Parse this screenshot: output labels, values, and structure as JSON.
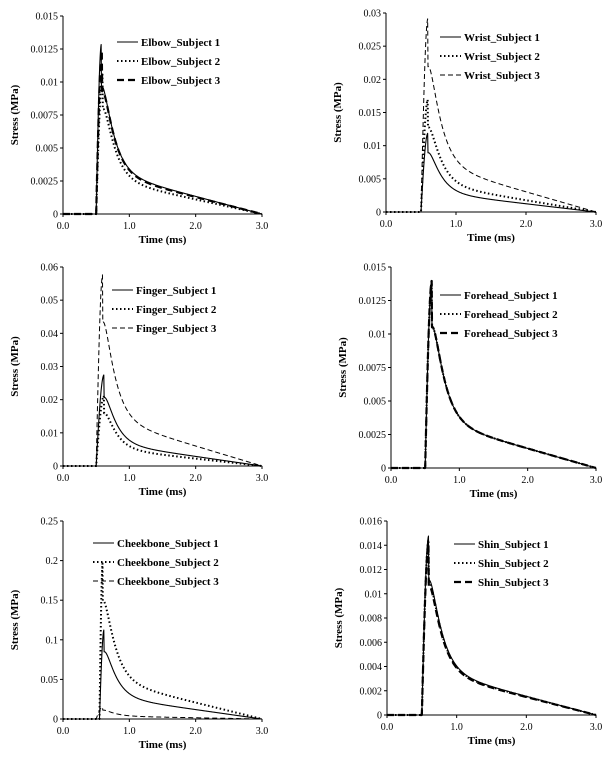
{
  "charts": [
    {
      "type": "line",
      "ylabel": "Stress (MPa)",
      "xlabel": "Time (ms)",
      "xlim": [
        0,
        3
      ],
      "ylim": [
        0,
        0.015
      ],
      "xtick_labels": [
        "0.0",
        "1.0",
        "2.0",
        "3.0"
      ],
      "ytick_labels": [
        "0",
        "0.0025",
        "0.005",
        "0.0075",
        "0.01",
        "0.0125",
        "0.015"
      ],
      "series": [
        {
          "name": "Elbow_Subject 1",
          "style": "solid",
          "onset": 0.5,
          "peak_time": 0.58,
          "peak": 0.0129
        },
        {
          "name": "Elbow_Subject 2",
          "style": "dotted",
          "onset": 0.5,
          "peak_time": 0.6,
          "peak": 0.0106
        },
        {
          "name": "Elbow_Subject 3",
          "style": "dashed-thick",
          "onset": 0.5,
          "peak_time": 0.59,
          "peak": 0.0124
        }
      ]
    },
    {
      "type": "line",
      "ylabel": "Stress (MPa)",
      "xlabel": "Time (ms)",
      "xlim": [
        0,
        3
      ],
      "ylim": [
        0,
        0.03
      ],
      "xtick_labels": [
        "0.0",
        "1.0",
        "2.0",
        "3.0"
      ],
      "ytick_labels": [
        "0",
        "0.005",
        "0.01",
        "0.015",
        "0.02",
        "0.025",
        "0.03"
      ],
      "series": [
        {
          "name": "Wrist_Subject 1",
          "style": "solid",
          "onset": 0.5,
          "peak_time": 0.6,
          "peak": 0.0119
        },
        {
          "name": "Wrist_Subject 2",
          "style": "dotted",
          "onset": 0.5,
          "peak_time": 0.6,
          "peak": 0.017
        },
        {
          "name": "Wrist_Subject 3",
          "style": "dashed",
          "onset": 0.5,
          "peak_time": 0.6,
          "peak": 0.0292
        }
      ]
    },
    {
      "type": "line",
      "ylabel": "Stress (MPa)",
      "xlabel": "Time (ms)",
      "xlim": [
        0,
        3
      ],
      "ylim": [
        0,
        0.06
      ],
      "xtick_labels": [
        "0.0",
        "1.0",
        "2.0",
        "3.0"
      ],
      "ytick_labels": [
        "0",
        "0.01",
        "0.02",
        "0.03",
        "0.04",
        "0.05",
        "0.06"
      ],
      "series": [
        {
          "name": "Finger_Subject 1",
          "style": "solid",
          "onset": 0.5,
          "peak_time": 0.62,
          "peak": 0.0275
        },
        {
          "name": "Finger_Subject 2",
          "style": "dotted",
          "onset": 0.5,
          "peak_time": 0.62,
          "peak": 0.0212
        },
        {
          "name": "Finger_Subject 3",
          "style": "dashed",
          "onset": 0.5,
          "peak_time": 0.6,
          "peak": 0.0578
        }
      ]
    },
    {
      "type": "line",
      "ylabel": "Stress (MPa)",
      "xlabel": "Time (ms)",
      "xlim": [
        0,
        3
      ],
      "ylim": [
        0,
        0.015
      ],
      "xtick_labels": [
        "0.0",
        "1.0",
        "2.0",
        "3.0"
      ],
      "ytick_labels": [
        "0",
        "0.0025",
        "0.005",
        "0.0075",
        "0.01",
        "0.0125",
        "0.015"
      ],
      "series": [
        {
          "name": "Forehead_Subject 1",
          "style": "solid",
          "onset": 0.5,
          "peak_time": 0.6,
          "peak": 0.014
        },
        {
          "name": "Forehead_Subject 2",
          "style": "dotted",
          "onset": 0.5,
          "peak_time": 0.6,
          "peak": 0.014
        },
        {
          "name": "Forehead_Subject 3",
          "style": "dashed-thick",
          "onset": 0.5,
          "peak_time": 0.6,
          "peak": 0.014
        }
      ]
    },
    {
      "type": "line",
      "ylabel": "Stress (MPa)",
      "xlabel": "Time (ms)",
      "xlim": [
        0,
        3
      ],
      "ylim": [
        0,
        0.25
      ],
      "xtick_labels": [
        "0.0",
        "1.0",
        "2.0",
        "3.0"
      ],
      "ytick_labels": [
        "0",
        "0.05",
        "0.1",
        "0.15",
        "0.2",
        "0.25"
      ],
      "series": [
        {
          "name": "Cheekbone_Subject 1",
          "style": "solid",
          "onset": 0.55,
          "peak_time": 0.62,
          "peak": 0.113
        },
        {
          "name": "Cheekbone_Subject 2",
          "style": "dotted",
          "onset": 0.55,
          "peak_time": 0.6,
          "peak": 0.199
        },
        {
          "name": "Cheekbone_Subject 3",
          "style": "dashed",
          "onset": 0.5,
          "peak_time": 0.6,
          "peak": 0.015
        }
      ]
    },
    {
      "type": "line",
      "ylabel": "Stress (MPa)",
      "xlabel": "Time (ms)",
      "xlim": [
        0,
        3
      ],
      "ylim": [
        0,
        0.016
      ],
      "xtick_labels": [
        "0.0",
        "1.0",
        "2.0",
        "3.0"
      ],
      "ytick_labels": [
        "0",
        "0.002",
        "0.004",
        "0.006",
        "0.008",
        "0.01",
        "0.012",
        "0.014",
        "0.016"
      ],
      "series": [
        {
          "name": "Shin_Subject 1",
          "style": "solid",
          "onset": 0.5,
          "peak_time": 0.6,
          "peak": 0.0148
        },
        {
          "name": "Shin_Subject 2",
          "style": "dotted",
          "onset": 0.5,
          "peak_time": 0.6,
          "peak": 0.0145
        },
        {
          "name": "Shin_Subject 3",
          "style": "dashed-thick",
          "onset": 0.5,
          "peak_time": 0.6,
          "peak": 0.0142
        }
      ]
    }
  ]
}
